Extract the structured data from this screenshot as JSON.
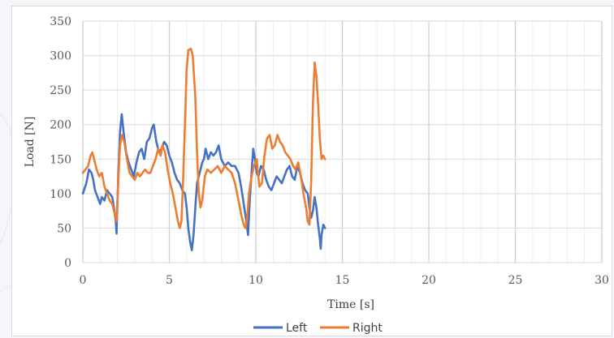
{
  "chart_data": {
    "type": "line",
    "title": "",
    "xlabel": "Time [s]",
    "ylabel": "Load [N]",
    "xlim": [
      0,
      30
    ],
    "ylim": [
      0,
      350
    ],
    "x_ticks": [
      0,
      5,
      10,
      15,
      20,
      25,
      30
    ],
    "y_ticks": [
      0,
      50,
      100,
      150,
      200,
      250,
      300,
      350
    ],
    "x_minor_step": 1,
    "grid": true,
    "legend_position": "bottom",
    "series": [
      {
        "name": "Left",
        "color": "#4472c4",
        "points": [
          [
            0.0,
            100
          ],
          [
            0.2,
            115
          ],
          [
            0.35,
            135
          ],
          [
            0.5,
            130
          ],
          [
            0.6,
            120
          ],
          [
            0.7,
            105
          ],
          [
            0.85,
            95
          ],
          [
            1.0,
            85
          ],
          [
            1.1,
            95
          ],
          [
            1.25,
            90
          ],
          [
            1.4,
            105
          ],
          [
            1.55,
            100
          ],
          [
            1.7,
            95
          ],
          [
            1.8,
            80
          ],
          [
            1.9,
            60
          ],
          [
            1.95,
            42
          ],
          [
            2.05,
            130
          ],
          [
            2.15,
            190
          ],
          [
            2.25,
            215
          ],
          [
            2.35,
            190
          ],
          [
            2.5,
            160
          ],
          [
            2.65,
            145
          ],
          [
            2.8,
            135
          ],
          [
            2.95,
            125
          ],
          [
            3.1,
            145
          ],
          [
            3.25,
            160
          ],
          [
            3.4,
            165
          ],
          [
            3.55,
            150
          ],
          [
            3.7,
            175
          ],
          [
            3.85,
            180
          ],
          [
            4.0,
            195
          ],
          [
            4.1,
            200
          ],
          [
            4.25,
            175
          ],
          [
            4.4,
            160
          ],
          [
            4.55,
            165
          ],
          [
            4.7,
            175
          ],
          [
            4.85,
            170
          ],
          [
            5.0,
            155
          ],
          [
            5.15,
            145
          ],
          [
            5.3,
            130
          ],
          [
            5.45,
            120
          ],
          [
            5.6,
            115
          ],
          [
            5.75,
            105
          ],
          [
            5.9,
            100
          ],
          [
            6.0,
            80
          ],
          [
            6.1,
            50
          ],
          [
            6.2,
            30
          ],
          [
            6.3,
            18
          ],
          [
            6.4,
            40
          ],
          [
            6.5,
            80
          ],
          [
            6.6,
            115
          ],
          [
            6.75,
            130
          ],
          [
            6.9,
            145
          ],
          [
            7.0,
            150
          ],
          [
            7.1,
            165
          ],
          [
            7.25,
            150
          ],
          [
            7.4,
            160
          ],
          [
            7.55,
            155
          ],
          [
            7.7,
            160
          ],
          [
            7.85,
            170
          ],
          [
            8.0,
            150
          ],
          [
            8.2,
            140
          ],
          [
            8.4,
            145
          ],
          [
            8.6,
            140
          ],
          [
            8.8,
            140
          ],
          [
            9.0,
            130
          ],
          [
            9.15,
            110
          ],
          [
            9.3,
            85
          ],
          [
            9.45,
            60
          ],
          [
            9.55,
            40
          ],
          [
            9.65,
            90
          ],
          [
            9.75,
            130
          ],
          [
            9.85,
            165
          ],
          [
            9.95,
            150
          ],
          [
            10.05,
            130
          ],
          [
            10.15,
            125
          ],
          [
            10.3,
            140
          ],
          [
            10.45,
            135
          ],
          [
            10.6,
            120
          ],
          [
            10.75,
            110
          ],
          [
            10.9,
            105
          ],
          [
            11.05,
            115
          ],
          [
            11.2,
            125
          ],
          [
            11.35,
            120
          ],
          [
            11.5,
            115
          ],
          [
            11.65,
            125
          ],
          [
            11.8,
            135
          ],
          [
            11.95,
            140
          ],
          [
            12.1,
            125
          ],
          [
            12.25,
            120
          ],
          [
            12.4,
            140
          ],
          [
            12.55,
            130
          ],
          [
            12.7,
            115
          ],
          [
            12.85,
            105
          ],
          [
            13.0,
            100
          ],
          [
            13.1,
            80
          ],
          [
            13.2,
            65
          ],
          [
            13.3,
            75
          ],
          [
            13.4,
            95
          ],
          [
            13.5,
            80
          ],
          [
            13.6,
            55
          ],
          [
            13.7,
            35
          ],
          [
            13.75,
            20
          ],
          [
            13.8,
            40
          ],
          [
            13.9,
            55
          ],
          [
            14.0,
            50
          ]
        ]
      },
      {
        "name": "Right",
        "color": "#ed7d31",
        "points": [
          [
            0.0,
            130
          ],
          [
            0.15,
            135
          ],
          [
            0.3,
            140
          ],
          [
            0.45,
            155
          ],
          [
            0.55,
            160
          ],
          [
            0.65,
            150
          ],
          [
            0.8,
            135
          ],
          [
            0.95,
            125
          ],
          [
            1.1,
            130
          ],
          [
            1.25,
            110
          ],
          [
            1.4,
            100
          ],
          [
            1.55,
            90
          ],
          [
            1.7,
            85
          ],
          [
            1.85,
            70
          ],
          [
            1.95,
            60
          ],
          [
            2.05,
            120
          ],
          [
            2.15,
            170
          ],
          [
            2.25,
            185
          ],
          [
            2.4,
            175
          ],
          [
            2.55,
            150
          ],
          [
            2.7,
            130
          ],
          [
            2.85,
            125
          ],
          [
            3.0,
            120
          ],
          [
            3.15,
            130
          ],
          [
            3.3,
            125
          ],
          [
            3.45,
            130
          ],
          [
            3.6,
            135
          ],
          [
            3.75,
            130
          ],
          [
            3.9,
            130
          ],
          [
            4.05,
            140
          ],
          [
            4.2,
            150
          ],
          [
            4.35,
            165
          ],
          [
            4.5,
            155
          ],
          [
            4.6,
            170
          ],
          [
            4.75,
            160
          ],
          [
            4.9,
            135
          ],
          [
            5.05,
            115
          ],
          [
            5.2,
            100
          ],
          [
            5.35,
            80
          ],
          [
            5.5,
            60
          ],
          [
            5.6,
            50
          ],
          [
            5.7,
            60
          ],
          [
            5.8,
            120
          ],
          [
            5.9,
            200
          ],
          [
            6.0,
            280
          ],
          [
            6.1,
            308
          ],
          [
            6.25,
            310
          ],
          [
            6.35,
            300
          ],
          [
            6.5,
            240
          ],
          [
            6.6,
            160
          ],
          [
            6.7,
            100
          ],
          [
            6.8,
            80
          ],
          [
            6.9,
            90
          ],
          [
            7.05,
            125
          ],
          [
            7.2,
            135
          ],
          [
            7.4,
            130
          ],
          [
            7.6,
            135
          ],
          [
            7.8,
            140
          ],
          [
            8.0,
            130
          ],
          [
            8.2,
            140
          ],
          [
            8.4,
            135
          ],
          [
            8.6,
            130
          ],
          [
            8.8,
            115
          ],
          [
            9.0,
            90
          ],
          [
            9.15,
            70
          ],
          [
            9.3,
            55
          ],
          [
            9.4,
            50
          ],
          [
            9.5,
            65
          ],
          [
            9.6,
            100
          ],
          [
            9.75,
            125
          ],
          [
            9.9,
            140
          ],
          [
            10.05,
            150
          ],
          [
            10.2,
            110
          ],
          [
            10.35,
            115
          ],
          [
            10.5,
            155
          ],
          [
            10.65,
            180
          ],
          [
            10.8,
            185
          ],
          [
            10.95,
            165
          ],
          [
            11.1,
            170
          ],
          [
            11.25,
            185
          ],
          [
            11.4,
            175
          ],
          [
            11.55,
            170
          ],
          [
            11.7,
            160
          ],
          [
            11.85,
            155
          ],
          [
            12.0,
            150
          ],
          [
            12.15,
            140
          ],
          [
            12.3,
            135
          ],
          [
            12.45,
            145
          ],
          [
            12.6,
            125
          ],
          [
            12.75,
            100
          ],
          [
            12.9,
            80
          ],
          [
            13.0,
            60
          ],
          [
            13.1,
            55
          ],
          [
            13.2,
            120
          ],
          [
            13.3,
            230
          ],
          [
            13.4,
            290
          ],
          [
            13.5,
            270
          ],
          [
            13.6,
            230
          ],
          [
            13.7,
            180
          ],
          [
            13.8,
            150
          ],
          [
            13.9,
            155
          ],
          [
            14.0,
            150
          ]
        ]
      }
    ]
  }
}
